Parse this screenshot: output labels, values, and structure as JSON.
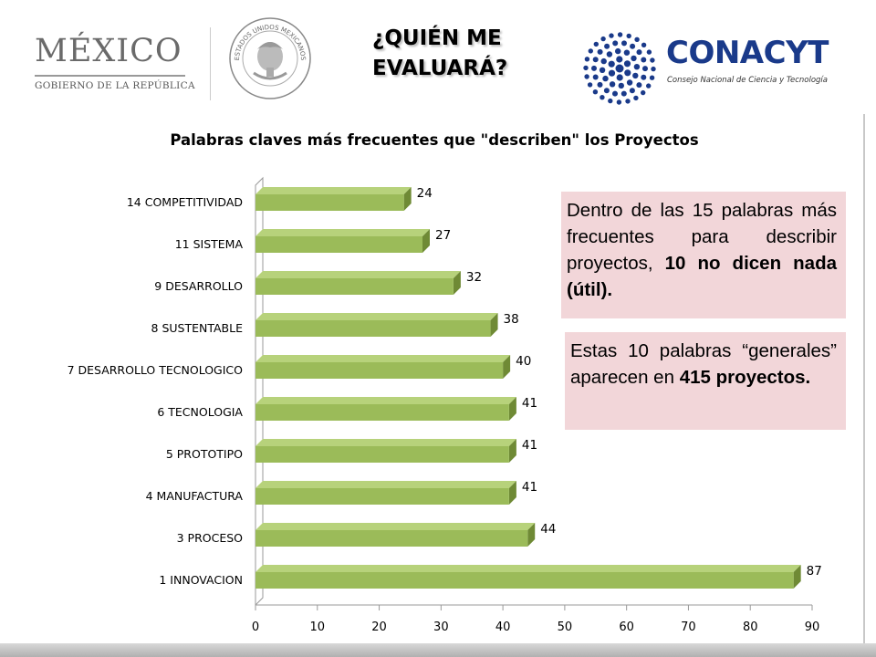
{
  "header": {
    "mexico_wordmark": "MÉXICO",
    "mexico_subtitle": "GOBIERNO DE LA REPÚBLICA",
    "seal_text": "ESTADOS UNIDOS MEXICANOS",
    "slide_title_line1": "¿QUIÉN ME",
    "slide_title_line2": "EVALUARÁ?",
    "conacyt_wordmark": "CONACYT",
    "conacyt_subtitle": "Consejo Nacional de Ciencia y Tecnología"
  },
  "colors": {
    "bar_front": "#9bbb59",
    "bar_top": "#b7d27b",
    "bar_side": "#6f8a35",
    "callout_bg": "#f2d6d9",
    "conacyt_blue": "#1a3a8a"
  },
  "chart_data": {
    "type": "bar",
    "orientation": "horizontal",
    "title": "Palabras claves más frecuentes que \"describen\" los Proyectos",
    "categories": [
      "1  INNOVACION",
      "3  PROCESO",
      "4  MANUFACTURA",
      "5  PROTOTIPO",
      "6  TECNOLOGIA",
      "7  DESARROLLO TECNOLOGICO",
      "8  SUSTENTABLE",
      "9  DESARROLLO",
      "11  SISTEMA",
      "14  COMPETITIVIDAD"
    ],
    "values": [
      87,
      44,
      41,
      41,
      41,
      40,
      38,
      32,
      27,
      24
    ],
    "xlim": [
      0,
      90
    ],
    "xticks": [
      0,
      10,
      20,
      30,
      40,
      50,
      60,
      70,
      80,
      90
    ],
    "data_labels": true,
    "grid": false,
    "legend": "none"
  },
  "callouts": [
    {
      "text_plain": "Dentro de las 15 palabras más frecuentes para describir proyectos, ",
      "text_bold": "10 no dicen nada (útil)."
    },
    {
      "text_plain": "Estas 10 palabras “generales” aparecen en ",
      "text_bold": "415 proyectos."
    }
  ]
}
